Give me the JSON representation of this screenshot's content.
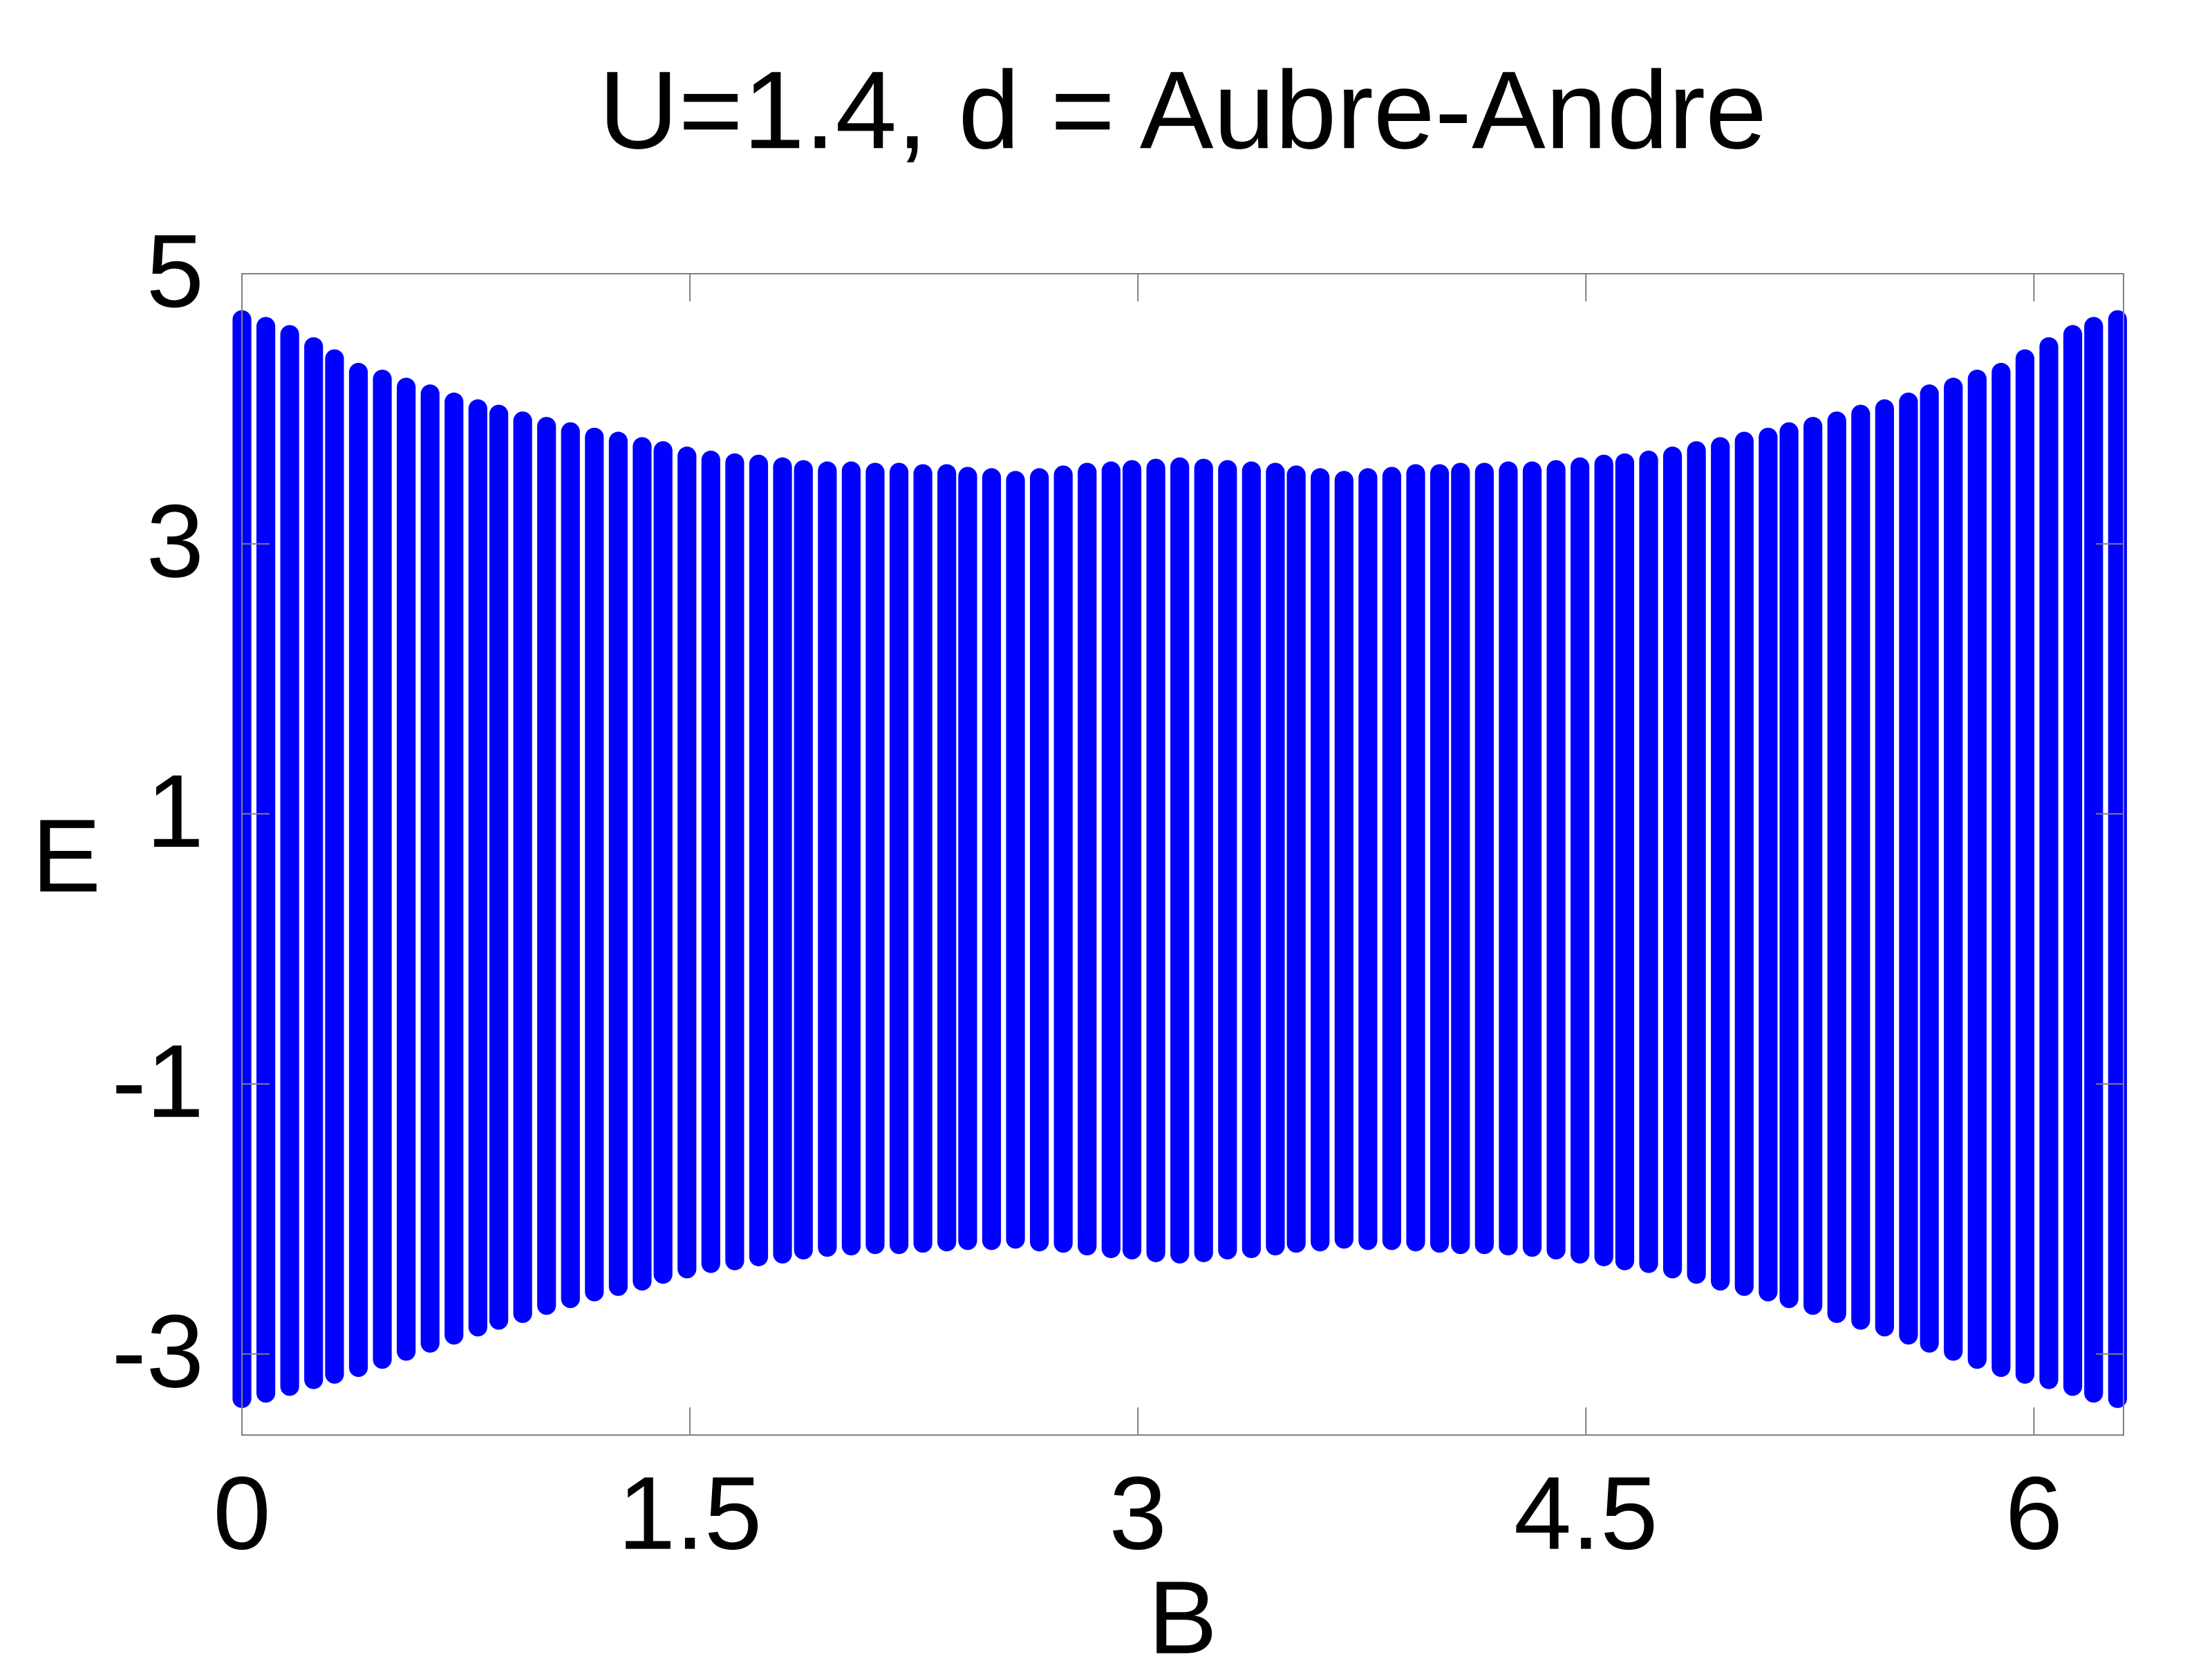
{
  "chart_data": {
    "type": "range",
    "title": "U=1.4, d = Aubre-Andre",
    "x_label": "B",
    "y_label": "E",
    "color": "#0000ff",
    "x": [
      0,
      0.08,
      0.16,
      0.24,
      0.31,
      0.39,
      0.47,
      0.55,
      0.63,
      0.71,
      0.79,
      0.86,
      0.94,
      1.02,
      1.1,
      1.18,
      1.26,
      1.34,
      1.41,
      1.49,
      1.57,
      1.65,
      1.73,
      1.81,
      1.88,
      1.96,
      2.04,
      2.12,
      2.2,
      2.28,
      2.36,
      2.43,
      2.51,
      2.59,
      2.67,
      2.75,
      2.83,
      2.91,
      2.98,
      3.06,
      3.14,
      3.22,
      3.3,
      3.38,
      3.46,
      3.53,
      3.61,
      3.69,
      3.77,
      3.85,
      3.93,
      4.01,
      4.08,
      4.16,
      4.24,
      4.32,
      4.4,
      4.48,
      4.56,
      4.63,
      4.71,
      4.79,
      4.87,
      4.95,
      5.03,
      5.11,
      5.18,
      5.26,
      5.34,
      5.42,
      5.5,
      5.58,
      5.65,
      5.73,
      5.81,
      5.89,
      5.97,
      6.05,
      6.13,
      6.2,
      6.28
    ],
    "low": [
      -3.4,
      -3.36,
      -3.31,
      -3.26,
      -3.22,
      -3.17,
      -3.11,
      -3.05,
      -2.99,
      -2.93,
      -2.87,
      -2.82,
      -2.77,
      -2.71,
      -2.66,
      -2.61,
      -2.57,
      -2.53,
      -2.48,
      -2.44,
      -2.4,
      -2.38,
      -2.35,
      -2.33,
      -2.3,
      -2.28,
      -2.27,
      -2.26,
      -2.26,
      -2.25,
      -2.24,
      -2.23,
      -2.23,
      -2.22,
      -2.24,
      -2.25,
      -2.27,
      -2.29,
      -2.3,
      -2.32,
      -2.33,
      -2.32,
      -2.3,
      -2.29,
      -2.27,
      -2.25,
      -2.24,
      -2.22,
      -2.23,
      -2.23,
      -2.24,
      -2.25,
      -2.26,
      -2.26,
      -2.27,
      -2.28,
      -2.3,
      -2.33,
      -2.35,
      -2.38,
      -2.4,
      -2.44,
      -2.48,
      -2.53,
      -2.57,
      -2.61,
      -2.66,
      -2.71,
      -2.77,
      -2.82,
      -2.87,
      -2.93,
      -2.99,
      -3.05,
      -3.11,
      -3.17,
      -3.22,
      -3.26,
      -3.31,
      -3.36,
      -3.4
    ],
    "high": [
      4.73,
      4.68,
      4.62,
      4.53,
      4.44,
      4.34,
      4.29,
      4.23,
      4.18,
      4.12,
      4.07,
      4.03,
      3.98,
      3.94,
      3.9,
      3.86,
      3.83,
      3.79,
      3.76,
      3.72,
      3.69,
      3.67,
      3.66,
      3.64,
      3.62,
      3.61,
      3.61,
      3.6,
      3.6,
      3.59,
      3.59,
      3.57,
      3.56,
      3.54,
      3.56,
      3.58,
      3.6,
      3.61,
      3.62,
      3.63,
      3.64,
      3.63,
      3.62,
      3.61,
      3.6,
      3.58,
      3.56,
      3.54,
      3.56,
      3.57,
      3.59,
      3.59,
      3.6,
      3.6,
      3.61,
      3.61,
      3.62,
      3.64,
      3.66,
      3.67,
      3.69,
      3.72,
      3.76,
      3.79,
      3.83,
      3.86,
      3.9,
      3.94,
      3.98,
      4.03,
      4.07,
      4.12,
      4.18,
      4.23,
      4.29,
      4.34,
      4.44,
      4.53,
      4.62,
      4.68,
      4.73
    ],
    "xlim": [
      0,
      6.3
    ],
    "ylim": [
      -3.6,
      5
    ],
    "xticks": [
      0,
      1.5,
      3,
      4.5,
      6
    ],
    "yticks": [
      -3,
      -1,
      1,
      3,
      5
    ]
  }
}
